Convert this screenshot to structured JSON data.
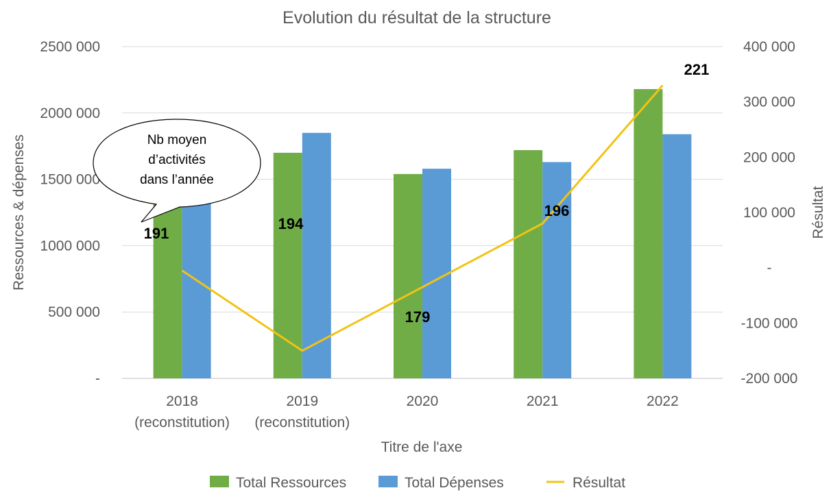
{
  "chart_data": {
    "type": "bar",
    "title": "Evolution du résultat de la structure",
    "categories": [
      [
        "2018",
        "(reconstitution)"
      ],
      [
        "2019",
        "(reconstitution)"
      ],
      [
        "2020"
      ],
      [
        "2021"
      ],
      [
        "2022"
      ]
    ],
    "series": [
      {
        "name": "Total Ressources",
        "type": "bar",
        "axis": "left",
        "color": "#70AD47",
        "values": [
          1640000,
          1700000,
          1540000,
          1720000,
          2180000
        ]
      },
      {
        "name": "Total Dépenses",
        "type": "bar",
        "axis": "left",
        "color": "#5B9BD5",
        "values": [
          1640000,
          1850000,
          1580000,
          1630000,
          1840000
        ]
      },
      {
        "name": "Résultat",
        "type": "line",
        "axis": "right",
        "color": "#F2C314",
        "values": [
          -5000,
          -150000,
          -35000,
          80000,
          330000
        ]
      }
    ],
    "activity_counts": [
      "191",
      "194",
      "179",
      "196",
      "221"
    ],
    "callout": [
      "Nb moyen",
      "d’activités",
      "dans l’année"
    ],
    "xlabel": "Titre de l'axe",
    "ylabel_left": "Ressources & dépenses",
    "ylabel_right": "Résultat",
    "ylim_left": [
      0,
      2500000
    ],
    "ylim_right": [
      -200000,
      400000
    ],
    "yticks_left": [
      "-",
      "500 000",
      "1000 000",
      "1500 000",
      "2000 000",
      "2500 000"
    ],
    "yticks_right": [
      "-200 000",
      "-100 000",
      "-",
      "100 000",
      "200 000",
      "300 000",
      "400 000"
    ],
    "grid": true,
    "legend_position": "bottom"
  }
}
